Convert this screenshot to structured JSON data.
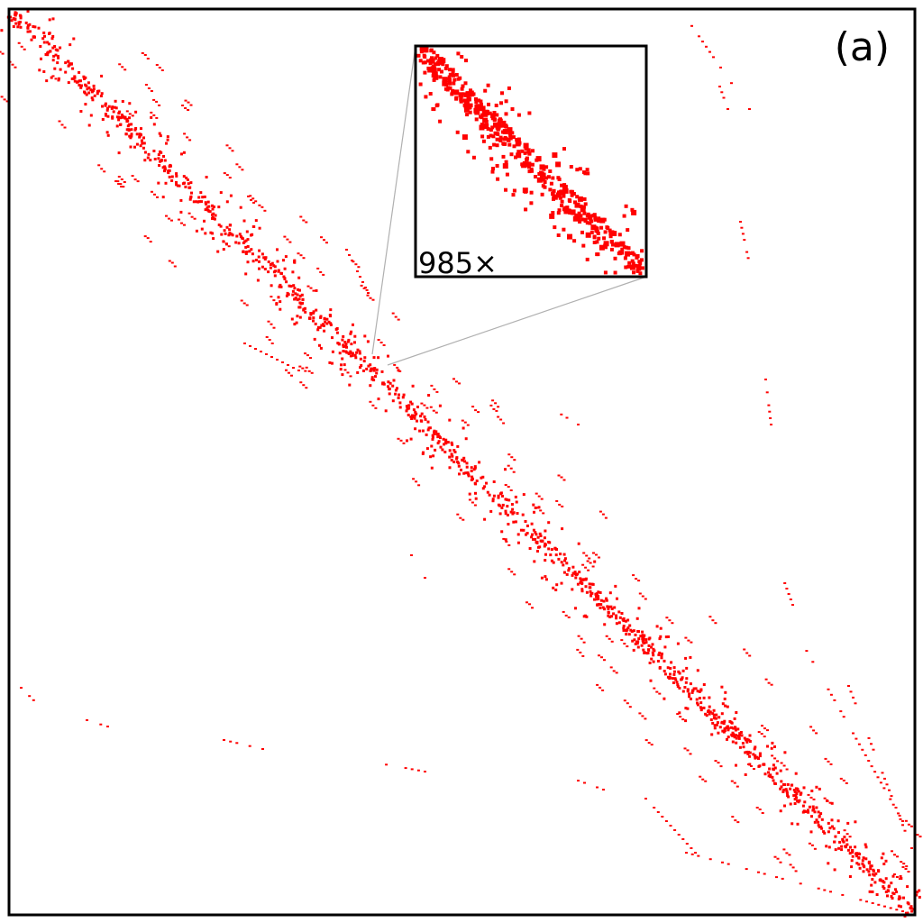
{
  "panel_label": "(a)",
  "inset": {
    "label": "985×"
  }
}
